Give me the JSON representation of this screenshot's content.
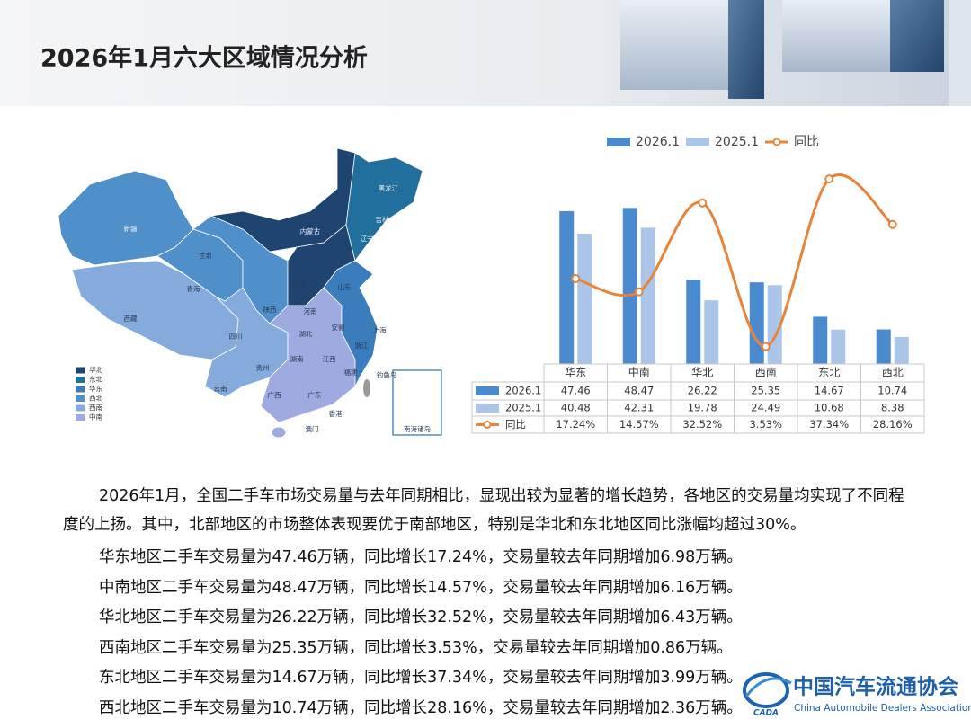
{
  "header": {
    "title": "2026年1月六大区域情况分析"
  },
  "map": {
    "legend": [
      {
        "name": "华北",
        "color": "#1f4470"
      },
      {
        "name": "东北",
        "color": "#216f9c"
      },
      {
        "name": "华东",
        "color": "#3a7cbc"
      },
      {
        "name": "西北",
        "color": "#4f8fca"
      },
      {
        "name": "西南",
        "color": "#84abdb"
      },
      {
        "name": "中南",
        "color": "#9fabe0"
      }
    ],
    "labels": [
      "新疆",
      "西藏",
      "青海",
      "甘肃",
      "内蒙古",
      "黑龙江",
      "吉林",
      "辽宁",
      "四川",
      "云南",
      "贵州",
      "广西",
      "广东",
      "湖南",
      "湖北",
      "河南",
      "山东",
      "山西",
      "陕西",
      "安徽",
      "江西",
      "福建",
      "浙江",
      "上海",
      "香港",
      "澳门",
      "钓鱼岛",
      "南海诸岛"
    ]
  },
  "chart_data": {
    "type": "bar",
    "categories": [
      "华东",
      "中南",
      "华北",
      "西南",
      "东北",
      "西北"
    ],
    "series": [
      {
        "name": "2026.1",
        "color": "#4a8bd0",
        "values": [
          47.46,
          48.47,
          26.22,
          25.35,
          14.67,
          10.74
        ]
      },
      {
        "name": "2025.1",
        "color": "#abc5e8",
        "values": [
          40.48,
          42.31,
          19.78,
          24.49,
          10.68,
          8.38
        ]
      },
      {
        "name": "同比",
        "type": "line",
        "axis": "y2",
        "color": "#e8833a",
        "values": [
          17.24,
          14.57,
          32.52,
          3.53,
          37.34,
          28.16
        ],
        "value_labels": [
          "17.24%",
          "14.57%",
          "32.52%",
          "3.53%",
          "37.34%",
          "28.16%"
        ]
      }
    ],
    "ylim": [
      0,
      60
    ],
    "y2lim": [
      0,
      39
    ],
    "legend": "top",
    "data_table": true
  },
  "body": {
    "paragraphs": [
      "2026年1月，全国二手车市场交易量与去年同期相比，显现出较为显著的增长趋势，各地区的交易量均实现了不同程度的上扬。其中，北部地区的市场整体表现要优于南部地区，特别是华北和东北地区同比涨幅均超过30%。",
      "华东地区二手车交易量为47.46万辆，同比增长17.24%，交易量较去年同期增加6.98万辆。",
      "中南地区二手车交易量为48.47万辆，同比增长14.57%，交易量较去年同期增加6.16万辆。",
      "华北地区二手车交易量为26.22万辆，同比增长32.52%，交易量较去年同期增加6.43万辆。",
      "西南地区二手车交易量为25.35万辆，同比增长3.53%，交易量较去年同期增加0.86万辆。",
      "东北地区二手车交易量为14.67万辆，同比增长37.34%，交易量较去年同期增加3.99万辆。",
      "西北地区二手车交易量为10.74万辆，同比增长28.16%，交易量较去年同期增加2.36万辆。"
    ]
  },
  "footer": {
    "org_cn": "中国汽车流通协会",
    "org_en": "China Automobile Dealers Association",
    "logo_text": "CADA"
  }
}
